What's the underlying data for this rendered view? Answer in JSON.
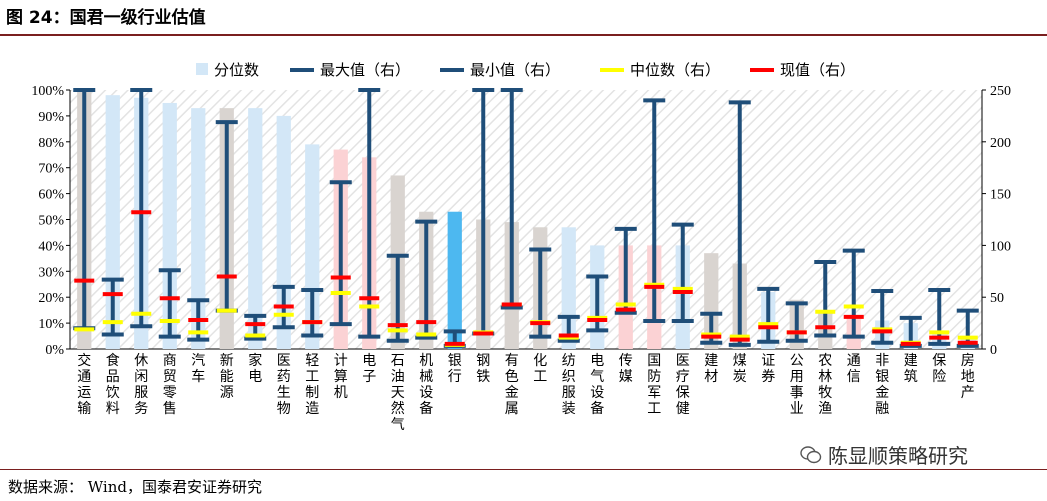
{
  "title": "图 24：国君一级行业估值",
  "source": "数据来源： Wind，国泰君安证券研究",
  "watermark": "陈显顺策略研究",
  "chart_data": {
    "type": "bar",
    "title": "图 24：国君一级行业估值",
    "y_left": {
      "ticks": [
        "0%",
        "10%",
        "20%",
        "30%",
        "40%",
        "50%",
        "60%",
        "70%",
        "80%",
        "90%",
        "100%"
      ],
      "ylim": [
        0,
        100
      ]
    },
    "y_right": {
      "ticks": [
        "0",
        "50",
        "100",
        "150",
        "200",
        "250"
      ],
      "ylim": [
        0,
        250
      ]
    },
    "legend_position": "top",
    "legend": [
      "分位数",
      "最大值（右）",
      "最小值（右）",
      "中位数（右）",
      "现值（右）"
    ],
    "categories": [
      "交通运输",
      "食品饮料",
      "休闲服务",
      "商贸零售",
      "汽车",
      "新能源",
      "家电",
      "医药生物",
      "轻工制造",
      "计算机",
      "电子",
      "石油天然气",
      "机械设备",
      "银行",
      "钢铁",
      "有色金属",
      "化工",
      "纺织服装",
      "电气设备",
      "传媒",
      "国防军工",
      "医疗保健",
      "建材",
      "煤炭",
      "证券",
      "公用事业",
      "农林牧渔",
      "通信",
      "非银金融",
      "建筑",
      "保险",
      "房地产"
    ],
    "series": [
      {
        "name": "分位数",
        "axis": "left",
        "values": [
          100,
          98,
          97,
          95,
          93,
          93,
          93,
          90,
          79,
          77,
          74,
          67,
          53,
          53,
          50,
          49,
          47,
          47,
          40,
          40,
          40,
          40,
          37,
          33,
          22,
          19,
          15,
          13,
          11,
          10,
          7,
          5
        ]
      },
      {
        "name": "最大值（右）",
        "axis": "right",
        "values": [
          250,
          67,
          250,
          76,
          47,
          219,
          32,
          60,
          57,
          161,
          250,
          90,
          123,
          17,
          250,
          250,
          96,
          31,
          70,
          116,
          240,
          120,
          34,
          238,
          58,
          44,
          84,
          95,
          56,
          30,
          57,
          37
        ]
      },
      {
        "name": "最小值（右）",
        "axis": "right",
        "values": [
          20,
          14,
          22,
          12,
          9,
          37,
          10,
          21,
          13,
          24,
          12,
          8,
          11,
          3,
          15,
          40,
          12,
          8,
          18,
          35,
          27,
          27,
          6,
          4,
          7,
          8,
          13,
          12,
          6,
          3,
          5,
          3
        ]
      },
      {
        "name": "中位数（右）",
        "axis": "right",
        "values": [
          19,
          26,
          34,
          27,
          16,
          37,
          13,
          33,
          26,
          54,
          41,
          18,
          14,
          4,
          16,
          43,
          26,
          11,
          30,
          43,
          62,
          58,
          14,
          12,
          24,
          16,
          36,
          41,
          19,
          6,
          16,
          11
        ]
      },
      {
        "name": "现值（右）",
        "axis": "right",
        "values": [
          66,
          53,
          132,
          49,
          28,
          70,
          24,
          41,
          26,
          69,
          49,
          23,
          26,
          5,
          15,
          43,
          25,
          13,
          28,
          38,
          60,
          55,
          12,
          9,
          21,
          16,
          21,
          31,
          17,
          5,
          11,
          6
        ]
      }
    ],
    "grid": false,
    "colors": {
      "percentile_light": "#d3e7f7",
      "percentile_gray": "#d9d4d0",
      "percentile_pink": "#fbd2d4",
      "percentile_blue": "#4db8f0",
      "range_bar": "#1f4e79",
      "median": "#ffff00",
      "current": "#ff0000"
    },
    "percentile_color_keys": [
      "percentile_gray",
      "percentile_light",
      "percentile_light",
      "percentile_light",
      "percentile_light",
      "percentile_gray",
      "percentile_light",
      "percentile_light",
      "percentile_light",
      "percentile_pink",
      "percentile_pink",
      "percentile_gray",
      "percentile_gray",
      "percentile_blue",
      "percentile_gray",
      "percentile_gray",
      "percentile_gray",
      "percentile_light",
      "percentile_light",
      "percentile_pink",
      "percentile_pink",
      "percentile_light",
      "percentile_gray",
      "percentile_gray",
      "percentile_light",
      "percentile_gray",
      "percentile_gray",
      "percentile_pink",
      "percentile_light",
      "percentile_light",
      "percentile_light",
      "percentile_light"
    ]
  }
}
